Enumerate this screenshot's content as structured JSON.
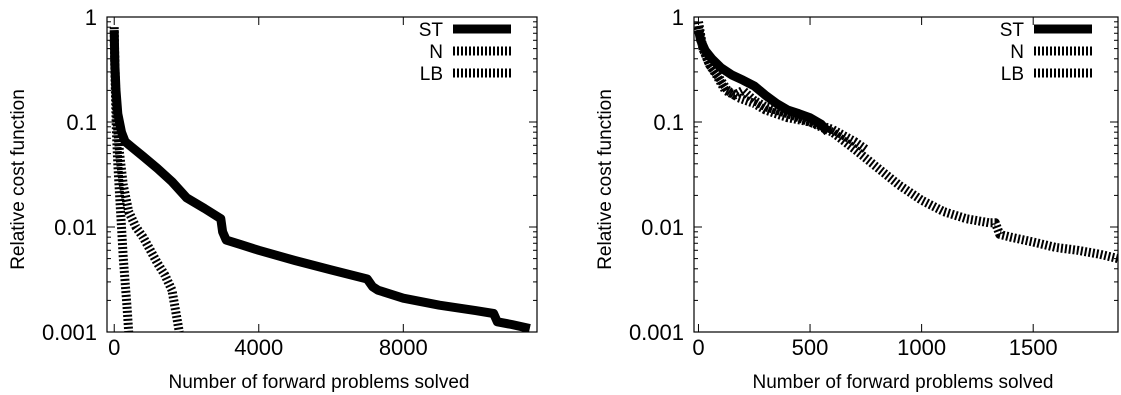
{
  "chart_data": [
    {
      "type": "line",
      "xlabel": "Number of forward problems solved",
      "ylabel": "Relative cost function",
      "xlim": [
        -200,
        11700
      ],
      "ylim": [
        0.001,
        1
      ],
      "yscale": "log",
      "xticks": [
        0,
        4000,
        8000
      ],
      "xtick_labels": [
        "0",
        "4000",
        "8000"
      ],
      "yticks": [
        0.001,
        0.01,
        0.1,
        1
      ],
      "ytick_labels": [
        "0.001",
        "0.01",
        "0.1",
        "1"
      ],
      "legend_position": "top-right",
      "series": [
        {
          "name": "ST",
          "style": "solid",
          "x": [
            0,
            20,
            50,
            100,
            200,
            300,
            500,
            800,
            1200,
            1600,
            2000,
            2500,
            2950,
            3000,
            3100,
            3500,
            4000,
            5000,
            6000,
            7000,
            7150,
            7300,
            8000,
            9000,
            10000,
            10500,
            10600,
            11000,
            11500
          ],
          "y": [
            0.75,
            0.35,
            0.2,
            0.12,
            0.08,
            0.065,
            0.057,
            0.047,
            0.036,
            0.027,
            0.019,
            0.015,
            0.012,
            0.009,
            0.0075,
            0.0068,
            0.006,
            0.0048,
            0.0039,
            0.0032,
            0.0027,
            0.0025,
            0.0021,
            0.0018,
            0.0016,
            0.0015,
            0.00125,
            0.00118,
            0.00108
          ]
        },
        {
          "name": "N",
          "style": "dashed",
          "x": [
            0,
            30,
            80,
            150,
            250,
            400,
            600,
            800,
            1000,
            1200,
            1400,
            1600,
            1800
          ],
          "y": [
            0.6,
            0.25,
            0.1,
            0.05,
            0.025,
            0.014,
            0.01,
            0.008,
            0.006,
            0.0045,
            0.0035,
            0.0025,
            0.001
          ]
        },
        {
          "name": "LB",
          "style": "dashed",
          "x": [
            0,
            20,
            60,
            100,
            150,
            200,
            250,
            300,
            350,
            400
          ],
          "y": [
            0.8,
            0.3,
            0.08,
            0.04,
            0.02,
            0.01,
            0.005,
            0.003,
            0.0018,
            0.001
          ]
        }
      ]
    },
    {
      "type": "line",
      "xlabel": "Number of forward problems solved",
      "ylabel": "Relative cost function",
      "xlim": [
        -20,
        1880
      ],
      "ylim": [
        0.001,
        1
      ],
      "yscale": "log",
      "xticks": [
        0,
        500,
        1000,
        1500
      ],
      "xtick_labels": [
        "0",
        "500",
        "1000",
        "1500"
      ],
      "yticks": [
        0.001,
        0.01,
        0.1,
        1
      ],
      "ytick_labels": [
        "0.001",
        "0.01",
        "0.1",
        "1"
      ],
      "legend_position": "top-right",
      "series": [
        {
          "name": "ST",
          "style": "solid",
          "x": [
            0,
            10,
            30,
            60,
            100,
            150,
            200,
            250,
            300,
            350,
            400,
            450,
            500,
            550,
            580
          ],
          "y": [
            0.75,
            0.6,
            0.48,
            0.4,
            0.33,
            0.28,
            0.25,
            0.22,
            0.18,
            0.15,
            0.13,
            0.12,
            0.11,
            0.095,
            0.08
          ]
        },
        {
          "name": "N",
          "style": "dashed",
          "x": [
            0,
            20,
            50,
            80,
            120,
            160,
            200,
            250,
            300,
            400,
            500,
            600,
            700,
            800,
            900,
            1000,
            1100,
            1200,
            1300,
            1330,
            1350,
            1400,
            1500,
            1600,
            1700,
            1800,
            1880
          ],
          "y": [
            0.9,
            0.5,
            0.35,
            0.28,
            0.2,
            0.18,
            0.2,
            0.16,
            0.14,
            0.12,
            0.1,
            0.08,
            0.055,
            0.037,
            0.025,
            0.018,
            0.014,
            0.012,
            0.011,
            0.011,
            0.0085,
            0.008,
            0.0072,
            0.0064,
            0.006,
            0.0055,
            0.005
          ]
        },
        {
          "name": "LB",
          "style": "dashed",
          "x": [
            0,
            20,
            50,
            90,
            130,
            180,
            250,
            300,
            400,
            500,
            600,
            700,
            750
          ],
          "y": [
            0.8,
            0.5,
            0.35,
            0.27,
            0.2,
            0.17,
            0.15,
            0.13,
            0.11,
            0.1,
            0.085,
            0.065,
            0.055
          ]
        }
      ]
    }
  ]
}
